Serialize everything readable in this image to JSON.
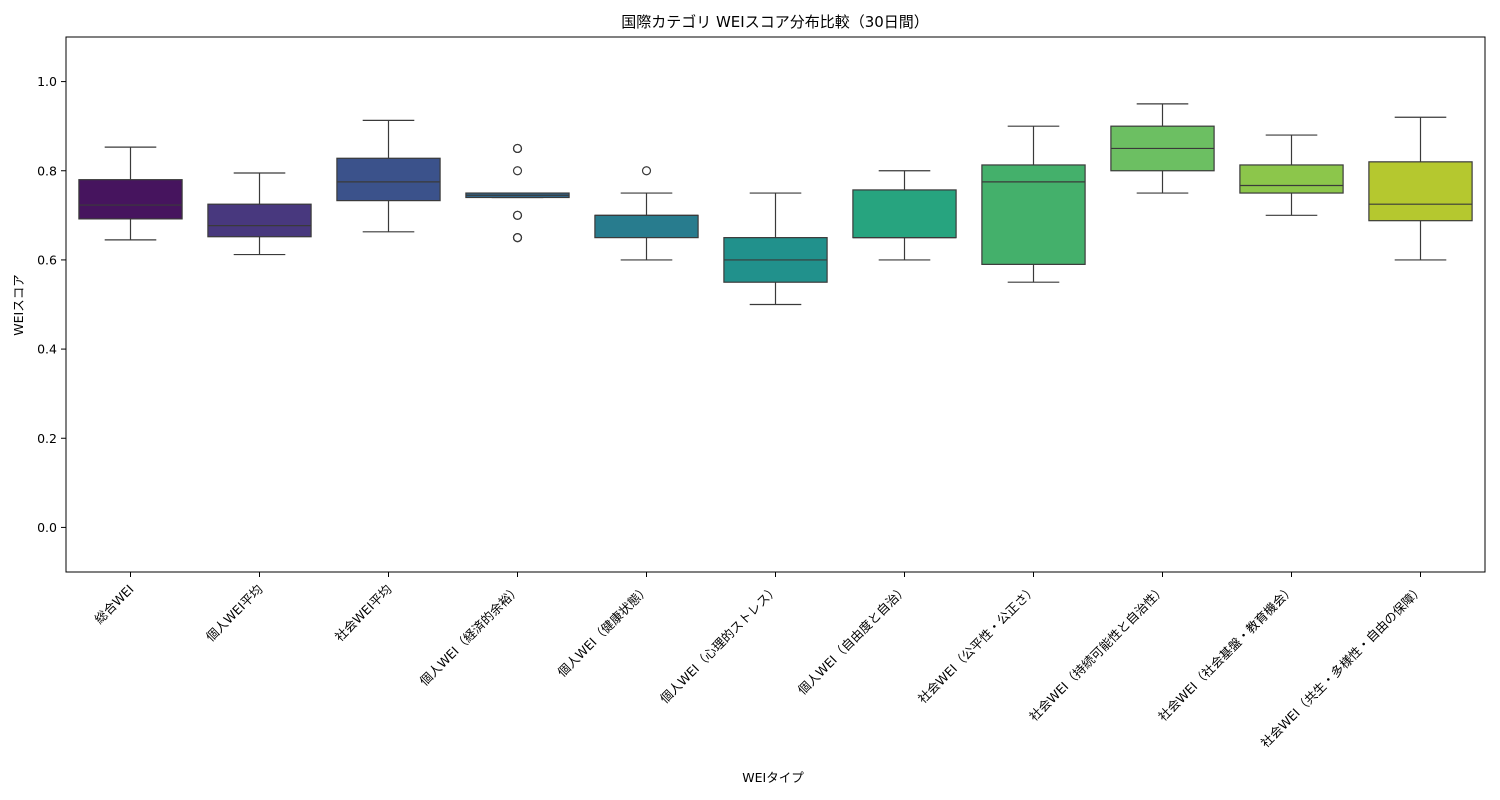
{
  "chart_data": {
    "type": "box",
    "title": "国際カテゴリ WEIスコア分布比較（30日間）",
    "xlabel": "WEIタイプ",
    "ylabel": "WEIスコア",
    "ylim": [
      -0.1,
      1.1
    ],
    "yticks": [
      "0.0",
      "0.2",
      "0.4",
      "0.6",
      "0.8",
      "1.0"
    ],
    "grid": false,
    "legend": "none",
    "categories": [
      "総合WEI",
      "個人WEI平均",
      "社会WEI平均",
      "個人WEI（経済的余裕）",
      "個人WEI（健康状態）",
      "個人WEI（心理的ストレス）",
      "個人WEI（自由度と自治）",
      "社会WEI（公平性・公正さ）",
      "社会WEI（持続可能性と自治性）",
      "社会WEI（社会基盤・教育機会）",
      "社会WEI（共生・多様性・自由の保障）"
    ],
    "boxes": [
      {
        "whisker_low": 0.645,
        "q1": 0.692,
        "median": 0.723,
        "q3": 0.78,
        "whisker_high": 0.853,
        "outliers": [],
        "color": "#46145e"
      },
      {
        "whisker_low": 0.612,
        "q1": 0.652,
        "median": 0.677,
        "q3": 0.725,
        "whisker_high": 0.795,
        "outliers": [],
        "color": "#48387e"
      },
      {
        "whisker_low": 0.663,
        "q1": 0.733,
        "median": 0.775,
        "q3": 0.828,
        "whisker_high": 0.913,
        "outliers": [],
        "color": "#3b528b"
      },
      {
        "whisker_low": 0.74,
        "q1": 0.74,
        "median": 0.745,
        "q3": 0.75,
        "whisker_high": 0.75,
        "outliers": [
          0.85,
          0.85,
          0.8,
          0.7,
          0.7,
          0.65,
          0.65
        ],
        "color": "#30688e"
      },
      {
        "whisker_low": 0.6,
        "q1": 0.65,
        "median": 0.7,
        "q3": 0.7,
        "whisker_high": 0.75,
        "outliers": [
          0.8
        ],
        "color": "#287c8e"
      },
      {
        "whisker_low": 0.5,
        "q1": 0.55,
        "median": 0.6,
        "q3": 0.65,
        "whisker_high": 0.75,
        "outliers": [],
        "color": "#21918c"
      },
      {
        "whisker_low": 0.6,
        "q1": 0.65,
        "median": 0.65,
        "q3": 0.757,
        "whisker_high": 0.8,
        "outliers": [],
        "color": "#27a47f"
      },
      {
        "whisker_low": 0.55,
        "q1": 0.59,
        "median": 0.775,
        "q3": 0.813,
        "whisker_high": 0.9,
        "outliers": [],
        "color": "#44b06b"
      },
      {
        "whisker_low": 0.75,
        "q1": 0.8,
        "median": 0.85,
        "q3": 0.9,
        "whisker_high": 0.95,
        "outliers": [],
        "color": "#6cbf62"
      },
      {
        "whisker_low": 0.7,
        "q1": 0.75,
        "median": 0.767,
        "q3": 0.813,
        "whisker_high": 0.88,
        "outliers": [],
        "color": "#8cc64b"
      },
      {
        "whisker_low": 0.6,
        "q1": 0.688,
        "median": 0.725,
        "q3": 0.82,
        "whisker_high": 0.92,
        "outliers": [],
        "color": "#b5c82f"
      }
    ]
  }
}
